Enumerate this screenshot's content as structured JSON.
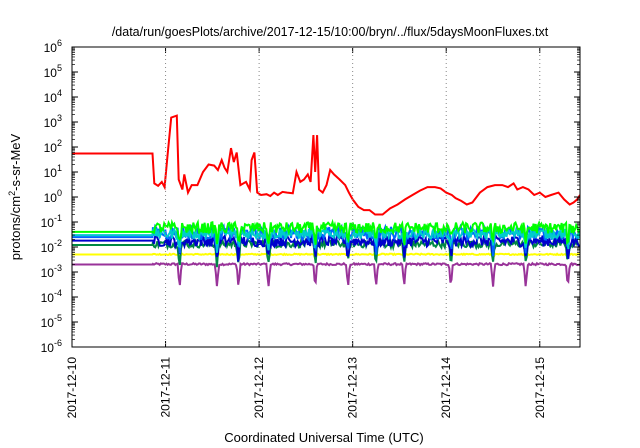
{
  "chart_data": {
    "type": "line",
    "title": "/data/run/goesPlots/archive/2017-12-15/10:00/bryn/../flux/5daysMoonFluxes.txt",
    "xlabel": "Coordinated Universal Time (UTC)",
    "ylabel_main": "protons/cm",
    "ylabel_sup": "2",
    "ylabel_rest": "-s-sr-MeV",
    "y_scale": "log",
    "ylim": [
      1e-06,
      1000000.0
    ],
    "y_tick_exponents": [
      -6,
      -5,
      -4,
      -3,
      -2,
      -1,
      0,
      1,
      2,
      3,
      4,
      5,
      6
    ],
    "y_tick_base": "10",
    "x_ticks": [
      "2017-12-10",
      "2017-12-11",
      "2017-12-12",
      "2017-12-13",
      "2017-12-14",
      "2017-12-15"
    ],
    "xlim": [
      0,
      5.43
    ],
    "grid": false,
    "legend": "none",
    "series": [
      {
        "color": "#ff0000",
        "points": [
          [
            0,
            55
          ],
          [
            0.86,
            55
          ],
          [
            0.88,
            3.5
          ],
          [
            0.92,
            2.8
          ],
          [
            0.96,
            4
          ],
          [
            0.99,
            2.5
          ],
          [
            1.02,
            40
          ],
          [
            1.06,
            1500
          ],
          [
            1.12,
            1800
          ],
          [
            1.14,
            5
          ],
          [
            1.18,
            2
          ],
          [
            1.2,
            8
          ],
          [
            1.24,
            1.5
          ],
          [
            1.28,
            3
          ],
          [
            1.34,
            3
          ],
          [
            1.4,
            10
          ],
          [
            1.46,
            20
          ],
          [
            1.52,
            18
          ],
          [
            1.56,
            12
          ],
          [
            1.6,
            30
          ],
          [
            1.63,
            15
          ],
          [
            1.66,
            10
          ],
          [
            1.7,
            90
          ],
          [
            1.73,
            25
          ],
          [
            1.76,
            60
          ],
          [
            1.8,
            3
          ],
          [
            1.86,
            4
          ],
          [
            1.9,
            2
          ],
          [
            1.92,
            30
          ],
          [
            1.95,
            60
          ],
          [
            1.98,
            1.5
          ],
          [
            2.02,
            1.2
          ],
          [
            2.08,
            1.3
          ],
          [
            2.12,
            1.1
          ],
          [
            2.16,
            1.5
          ],
          [
            2.2,
            1.2
          ],
          [
            2.25,
            1.6
          ],
          [
            2.3,
            1.5
          ],
          [
            2.36,
            1.4
          ],
          [
            2.4,
            10
          ],
          [
            2.44,
            4
          ],
          [
            2.48,
            5
          ],
          [
            2.52,
            8
          ],
          [
            2.55,
            4
          ],
          [
            2.58,
            300
          ],
          [
            2.6,
            10
          ],
          [
            2.62,
            300
          ],
          [
            2.64,
            2
          ],
          [
            2.68,
            1.5
          ],
          [
            2.72,
            3
          ],
          [
            2.76,
            12
          ],
          [
            2.8,
            8
          ],
          [
            2.86,
            5
          ],
          [
            2.92,
            3
          ],
          [
            2.96,
            1.5
          ],
          [
            3.0,
            0.8
          ],
          [
            3.06,
            0.4
          ],
          [
            3.12,
            0.3
          ],
          [
            3.18,
            0.3
          ],
          [
            3.24,
            0.2
          ],
          [
            3.32,
            0.2
          ],
          [
            3.4,
            0.35
          ],
          [
            3.48,
            0.5
          ],
          [
            3.56,
            0.8
          ],
          [
            3.64,
            1.2
          ],
          [
            3.72,
            1.8
          ],
          [
            3.8,
            2.5
          ],
          [
            3.88,
            2.5
          ],
          [
            3.94,
            2.2
          ],
          [
            4.0,
            1.5
          ],
          [
            4.06,
            1.2
          ],
          [
            4.1,
            0.9
          ],
          [
            4.16,
            0.7
          ],
          [
            4.22,
            0.5
          ],
          [
            4.28,
            0.6
          ],
          [
            4.36,
            1.5
          ],
          [
            4.44,
            2.5
          ],
          [
            4.52,
            3
          ],
          [
            4.6,
            3
          ],
          [
            4.66,
            2.5
          ],
          [
            4.72,
            3.5
          ],
          [
            4.76,
            2
          ],
          [
            4.82,
            2.5
          ],
          [
            4.88,
            2
          ],
          [
            4.94,
            1.2
          ],
          [
            5.0,
            1.5
          ],
          [
            5.06,
            1
          ],
          [
            5.12,
            1.2
          ],
          [
            5.2,
            1.5
          ],
          [
            5.26,
            0.8
          ],
          [
            5.32,
            0.5
          ],
          [
            5.36,
            0.6
          ],
          [
            5.4,
            0.8
          ],
          [
            5.43,
            1.2
          ]
        ]
      },
      {
        "color": "#00ff00",
        "base": 0.05,
        "step": [
          0,
          0.04,
          0.86,
          0.04
        ],
        "amp": 0.45,
        "dip_scale": 1.0
      },
      {
        "color": "#00cccc",
        "base": 0.03,
        "step": [
          0,
          0.03,
          0.86,
          0.03
        ],
        "amp": 0.4,
        "dip_scale": 1.0
      },
      {
        "color": "#0066ff",
        "base": 0.03,
        "step": [
          0,
          0.025,
          0.86,
          0.025
        ],
        "amp": 0.55,
        "dip_scale": 1.2
      },
      {
        "color": "#0000cc",
        "base": 0.015,
        "step": [
          0,
          0.018,
          0.86,
          0.018
        ],
        "amp": 0.45,
        "dip_scale": 1.2
      },
      {
        "color": "#008844",
        "base": 0.012,
        "step": [
          0,
          0.012,
          0.86,
          0.012
        ],
        "amp": 0.3,
        "dip_scale": 1.4
      },
      {
        "color": "#ffff00",
        "base": 0.005,
        "step": [
          0,
          0.005,
          0.86,
          0.005
        ],
        "amp": 0.05,
        "dip_scale": 0.2
      },
      {
        "color": "#993399",
        "base": 0.002,
        "step": [
          0,
          0.002,
          0.86,
          0.002
        ],
        "amp": 0.08,
        "dip_scale": 1.6
      }
    ]
  }
}
